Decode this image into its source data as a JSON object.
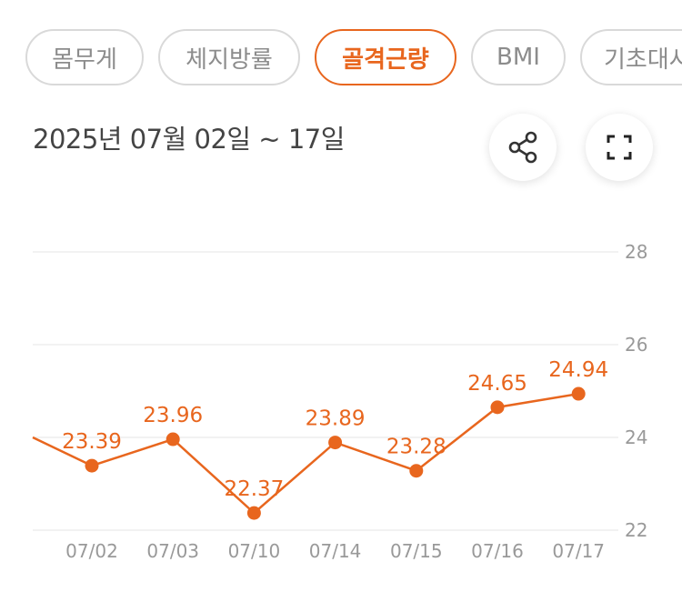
{
  "tabs": [
    {
      "label": "몸무게",
      "active": false
    },
    {
      "label": "체지방률",
      "active": false
    },
    {
      "label": "골격근량",
      "active": true
    },
    {
      "label": "BMI",
      "active": false
    },
    {
      "label": "기초대사",
      "active": false
    }
  ],
  "date_range": "2025년 07월 02일 ~ 17일",
  "icons": {
    "share": "share-icon",
    "expand": "expand-icon"
  },
  "colors": {
    "accent": "#e8661e",
    "grid": "#eeeeee",
    "tab_border": "#d9d9d9",
    "muted_text": "#999999"
  },
  "chart_data": {
    "type": "line",
    "categories": [
      "07/02",
      "07/03",
      "07/10",
      "07/14",
      "07/15",
      "07/16",
      "07/17"
    ],
    "series": [
      {
        "values": [
          23.39,
          23.96,
          22.37,
          23.89,
          23.28,
          24.65,
          24.94
        ]
      }
    ],
    "labels": [
      "23.39",
      "23.96",
      "22.37",
      "23.89",
      "23.28",
      "24.65",
      "24.94"
    ],
    "leading_value": 24.0,
    "y_ticks": [
      "28",
      "26",
      "24",
      "22"
    ],
    "ylim": [
      22,
      28
    ],
    "grid": true,
    "y_axis_side": "right"
  }
}
